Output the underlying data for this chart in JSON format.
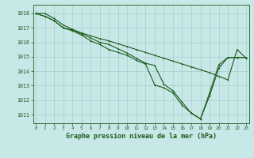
{
  "background_color": "#c8e8e8",
  "grid_color": "#aacccc",
  "line_color": "#1a5c1a",
  "marker_color": "#1a5c1a",
  "xlabel": "Graphe pression niveau de la mer (hPa)",
  "xlabel_color": "#1a5c1a",
  "tick_color": "#1a5c1a",
  "ylim": [
    1010.4,
    1018.6
  ],
  "xlim": [
    -0.3,
    23.3
  ],
  "yticks": [
    1011,
    1012,
    1013,
    1014,
    1015,
    1016,
    1017,
    1018
  ],
  "xticks": [
    0,
    1,
    2,
    3,
    4,
    5,
    6,
    7,
    8,
    9,
    10,
    11,
    12,
    13,
    14,
    15,
    16,
    17,
    18,
    19,
    20,
    21,
    22,
    23
  ],
  "series1_x": [
    0,
    1,
    2,
    3,
    4,
    5,
    6,
    7,
    8,
    9,
    10,
    11,
    12,
    13,
    14,
    15,
    16,
    17,
    18,
    19,
    20,
    21,
    22,
    23
  ],
  "series1_y": [
    1018.0,
    1017.8,
    1017.5,
    1017.0,
    1016.85,
    1016.6,
    1016.3,
    1016.0,
    1015.85,
    1015.55,
    1015.25,
    1014.9,
    1014.55,
    1014.4,
    1013.1,
    1012.65,
    1011.85,
    1011.1,
    1010.7,
    1012.3,
    1014.2,
    1014.95,
    1014.95,
    1014.95
  ],
  "series2_x": [
    0,
    1,
    2,
    3,
    4,
    5,
    6,
    7,
    8,
    9,
    10,
    11,
    12,
    13,
    14,
    15,
    16,
    17,
    18,
    19,
    20,
    21,
    22,
    23
  ],
  "series2_y": [
    1018.0,
    1017.8,
    1017.5,
    1017.0,
    1016.8,
    1016.5,
    1016.1,
    1015.85,
    1015.5,
    1015.3,
    1015.1,
    1014.75,
    1014.5,
    1013.05,
    1012.85,
    1012.5,
    1011.65,
    1011.1,
    1010.7,
    1012.5,
    1014.45,
    1014.95,
    1014.95,
    1014.95
  ],
  "series3_x": [
    0,
    1,
    2,
    3,
    4,
    5,
    6,
    7,
    8,
    9,
    10,
    11,
    12,
    13,
    14,
    15,
    16,
    17,
    18,
    19,
    20,
    21,
    22,
    23
  ],
  "series3_y": [
    1018.0,
    1018.0,
    1017.65,
    1017.2,
    1016.9,
    1016.65,
    1016.45,
    1016.25,
    1016.1,
    1015.9,
    1015.7,
    1015.5,
    1015.3,
    1015.1,
    1014.9,
    1014.7,
    1014.5,
    1014.3,
    1014.1,
    1013.9,
    1013.65,
    1013.4,
    1015.5,
    1014.9
  ]
}
